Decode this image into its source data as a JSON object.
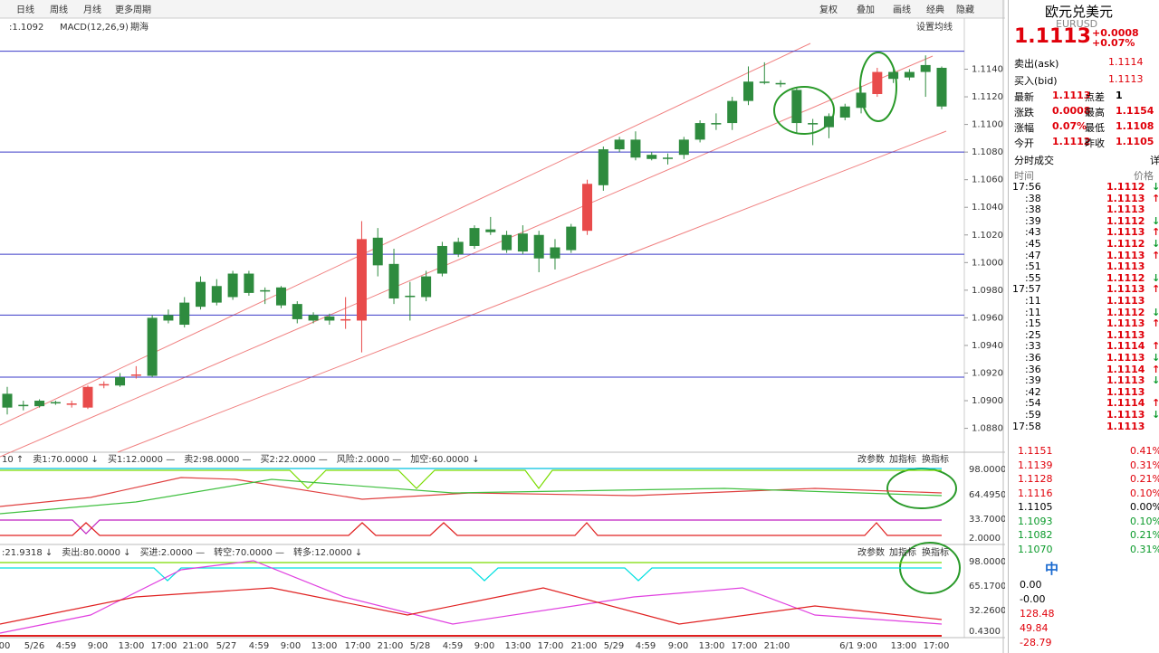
{
  "toolbar": {
    "periods": [
      "日线",
      "周线",
      "月线",
      "更多周期"
    ],
    "tools": [
      "复权",
      "叠加",
      "画线",
      "经典",
      "隐藏"
    ]
  },
  "main_legend": {
    "value": ":1.1092",
    "indicator": "MACD(12,26,9)",
    "source": "期海",
    "ma_button": "设置均线"
  },
  "chart_data": {
    "type": "candlestick",
    "up_color": "#e84b4b",
    "down_color": "#2e8b3e",
    "level_color": "#3a3ac8",
    "ylim": [
      1.0864,
      1.1177
    ],
    "yticks": [
      {
        "value": 1.088,
        "label": "1.0880"
      },
      {
        "value": 1.09,
        "label": "1.0900"
      },
      {
        "value": 1.092,
        "label": "1.0920"
      },
      {
        "value": 1.094,
        "label": "1.0940"
      },
      {
        "value": 1.096,
        "label": "1.0960"
      },
      {
        "value": 1.098,
        "label": "1.0980"
      },
      {
        "value": 1.1,
        "label": "1.1000"
      },
      {
        "value": 1.102,
        "label": "1.1020"
      },
      {
        "value": 1.104,
        "label": "1.1040"
      },
      {
        "value": 1.106,
        "label": "1.1060"
      },
      {
        "value": 1.108,
        "label": "1.1080"
      },
      {
        "value": 1.11,
        "label": "1.1100"
      },
      {
        "value": 1.112,
        "label": "1.1120"
      },
      {
        "value": 1.114,
        "label": "1.1140"
      }
    ],
    "levels": [
      1.1153,
      1.108,
      1.1006,
      1.0962,
      1.0917
    ],
    "x_labels": [
      "00",
      "5/26",
      "4:59",
      "9:00",
      "13:00",
      "17:00",
      "21:00",
      "5/27",
      "4:59",
      "9:00",
      "13:00",
      "17:00",
      "21:00",
      "5/28",
      "4:59",
      "9:00",
      "13:00",
      "17:00",
      "21:00",
      "5/29",
      "4:59",
      "9:00",
      "13:00",
      "17:00",
      "21:00",
      "6/1 9:00",
      "13:00",
      "17:00"
    ],
    "candles": [
      [
        1.0905,
        1.091,
        1.089,
        1.0895
      ],
      [
        1.0897,
        1.09,
        1.0893,
        1.0896
      ],
      [
        1.09,
        1.0901,
        1.0895,
        1.0896
      ],
      [
        1.0899,
        1.09,
        1.0897,
        1.0898
      ],
      [
        1.0897,
        1.09,
        1.0895,
        1.0898
      ],
      [
        1.0895,
        1.0911,
        1.0894,
        1.091
      ],
      [
        1.0911,
        1.0914,
        1.0909,
        1.0912
      ],
      [
        1.0917,
        1.092,
        1.091,
        1.0911
      ],
      [
        1.0918,
        1.0925,
        1.0916,
        1.0919
      ],
      [
        1.096,
        1.0962,
        1.0917,
        1.0918
      ],
      [
        1.0962,
        1.0966,
        1.0956,
        1.0958
      ],
      [
        1.0971,
        1.0975,
        1.0953,
        1.0955
      ],
      [
        1.0986,
        1.099,
        1.0966,
        1.0968
      ],
      [
        1.0983,
        1.0988,
        1.0969,
        1.0971
      ],
      [
        1.0992,
        1.0994,
        1.0973,
        1.0975
      ],
      [
        1.0992,
        1.0994,
        1.0976,
        1.0978
      ],
      [
        1.098,
        1.0982,
        1.097,
        1.0979
      ],
      [
        1.0982,
        1.0983,
        1.0967,
        1.0969
      ],
      [
        1.097,
        1.0972,
        1.0956,
        1.0959
      ],
      [
        1.0962,
        1.0964,
        1.0956,
        1.0958
      ],
      [
        1.0961,
        1.0963,
        1.0955,
        1.0958
      ],
      [
        1.0958,
        1.0975,
        1.0952,
        1.0959
      ],
      [
        1.0958,
        1.103,
        1.0935,
        1.1017
      ],
      [
        1.1018,
        1.1025,
        1.099,
        1.0998
      ],
      [
        1.0999,
        1.101,
        1.097,
        1.0974
      ],
      [
        1.0976,
        1.0986,
        1.0958,
        1.0975
      ],
      [
        1.099,
        1.0994,
        1.0972,
        1.0975
      ],
      [
        1.1012,
        1.1015,
        1.099,
        1.0992
      ],
      [
        1.1015,
        1.1018,
        1.1004,
        1.1006
      ],
      [
        1.1025,
        1.1027,
        1.101,
        1.1012
      ],
      [
        1.1024,
        1.1033,
        1.102,
        1.1022
      ],
      [
        1.102,
        1.1023,
        1.1007,
        1.1009
      ],
      [
        1.1021,
        1.1027,
        1.1006,
        1.1008
      ],
      [
        1.102,
        1.1023,
        1.0993,
        1.1003
      ],
      [
        1.1011,
        1.1017,
        1.0995,
        1.1003
      ],
      [
        1.1026,
        1.1028,
        1.1007,
        1.1009
      ],
      [
        1.1023,
        1.106,
        1.102,
        1.1057
      ],
      [
        1.1082,
        1.1084,
        1.1052,
        1.1056
      ],
      [
        1.1089,
        1.1091,
        1.108,
        1.1082
      ],
      [
        1.1089,
        1.1095,
        1.1074,
        1.1076
      ],
      [
        1.1078,
        1.108,
        1.1074,
        1.1075
      ],
      [
        1.1076,
        1.1079,
        1.1071,
        1.1075
      ],
      [
        1.1089,
        1.1091,
        1.1075,
        1.1078
      ],
      [
        1.1101,
        1.1103,
        1.1087,
        1.1089
      ],
      [
        1.1101,
        1.1108,
        1.1096,
        1.11
      ],
      [
        1.1117,
        1.112,
        1.1096,
        1.1101
      ],
      [
        1.1131,
        1.1142,
        1.1114,
        1.1117
      ],
      [
        1.1131,
        1.1145,
        1.1129,
        1.113
      ],
      [
        1.113,
        1.1132,
        1.1127,
        1.1129
      ],
      [
        1.1125,
        1.1127,
        1.1094,
        1.1101
      ],
      [
        1.1101,
        1.1104,
        1.1085,
        1.11
      ],
      [
        1.1106,
        1.1108,
        1.109,
        1.1098
      ],
      [
        1.1113,
        1.1115,
        1.1103,
        1.1105
      ],
      [
        1.1123,
        1.1128,
        1.1108,
        1.1112
      ],
      [
        1.1122,
        1.1141,
        1.112,
        1.1138
      ],
      [
        1.1138,
        1.114,
        1.113,
        1.1133
      ],
      [
        1.1138,
        1.114,
        1.1132,
        1.1134
      ],
      [
        1.1143,
        1.115,
        1.112,
        1.1138
      ],
      [
        1.1141,
        1.1142,
        1.1111,
        1.1113
      ]
    ]
  },
  "panel1": {
    "header": [
      {
        "text": "10 ↑",
        "color": "#e0208c"
      },
      {
        "text": "卖1:70.0000 ↓",
        "color": "#7acc00"
      },
      {
        "text": "买1:12.0000 —",
        "color": "#e00000"
      },
      {
        "text": "卖2:98.0000 —",
        "color": "#00b0d0"
      },
      {
        "text": "买2:22.0000 —",
        "color": "#e000e0"
      },
      {
        "text": "风险:2.0000 —",
        "color": "#80e0ff"
      },
      {
        "text": "加空:60.0000 ↓",
        "color": "#80e0ff"
      }
    ],
    "buttons": [
      "改参数",
      "加指标",
      "换指标"
    ],
    "axis": [
      "98.0000",
      "64.4950",
      "33.7000",
      "2.0000"
    ]
  },
  "panel2": {
    "header": [
      {
        "text": ":21.9318 ↓",
        "color": "#e0208c"
      },
      {
        "text": "卖出:80.0000 ↓",
        "color": "#7acc00"
      },
      {
        "text": "买进:2.0000 —",
        "color": "#e00000"
      },
      {
        "text": "转空:70.0000 —",
        "color": "#00b0d0"
      },
      {
        "text": "转多:12.0000 ↓",
        "color": "#80e0ff"
      }
    ],
    "buttons": [
      "改参数",
      "加指标",
      "换指标"
    ],
    "axis": [
      "98.0000",
      "65.1700",
      "32.2600",
      "0.4300"
    ]
  },
  "quote": {
    "name": "欧元兑美元",
    "code": "EURUSD",
    "price": "1.1113",
    "change": "+0.0008",
    "change_pct": "+0.07%",
    "ask_label": "卖出(ask)",
    "ask": "1.1114",
    "bid_label": "买入(bid)",
    "bid": "1.1113",
    "stats": [
      [
        "最新",
        "1.1113",
        "点差",
        "1"
      ],
      [
        "涨跌",
        "0.0008",
        "最高",
        "1.1154"
      ],
      [
        "涨幅",
        "0.07%",
        "最低",
        "1.1108"
      ],
      [
        "今开",
        "1.1112",
        "昨收",
        "1.1105"
      ]
    ],
    "trades_title": "分时成交",
    "detail": "详",
    "time_header": "时间",
    "price_header": "价格",
    "trades": [
      {
        "time": "17:56",
        "price": "1.1112",
        "dir": "↓"
      },
      {
        "time": ":38",
        "price": "1.1113",
        "dir": "↑"
      },
      {
        "time": ":38",
        "price": "1.1113"
      },
      {
        "time": ":39",
        "price": "1.1112",
        "dir": "↓"
      },
      {
        "time": ":43",
        "price": "1.1113",
        "dir": "↑"
      },
      {
        "time": ":45",
        "price": "1.1112",
        "dir": "↓"
      },
      {
        "time": ":47",
        "price": "1.1113",
        "dir": "↑"
      },
      {
        "time": ":51",
        "price": "1.1113"
      },
      {
        "time": ":55",
        "price": "1.1112",
        "dir": "↓"
      },
      {
        "time": "17:57",
        "price": "1.1113",
        "dir": "↑"
      },
      {
        "time": ":11",
        "price": "1.1113"
      },
      {
        "time": ":11",
        "price": "1.1112",
        "dir": "↓"
      },
      {
        "time": ":15",
        "price": "1.1113",
        "dir": "↑"
      },
      {
        "time": ":25",
        "price": "1.1113"
      },
      {
        "time": ":33",
        "price": "1.1114",
        "dir": "↑"
      },
      {
        "time": ":36",
        "price": "1.1113",
        "dir": "↓"
      },
      {
        "time": ":36",
        "price": "1.1114",
        "dir": "↑"
      },
      {
        "time": ":39",
        "price": "1.1113",
        "dir": "↓"
      },
      {
        "time": ":42",
        "price": "1.1113"
      },
      {
        "time": ":54",
        "price": "1.1114",
        "dir": "↑"
      },
      {
        "time": ":59",
        "price": "1.1113",
        "dir": "↓"
      },
      {
        "time": "17:58",
        "price": "1.1113"
      }
    ],
    "mini_left": [
      "1.1151",
      "1.1139",
      "1.1128",
      "1.1116",
      "1.1105",
      "1.1093",
      "1.1082",
      "1.1070"
    ],
    "mini_right": [
      "0.41%",
      "0.31%",
      "0.21%",
      "0.10%",
      "0.00%",
      "0.10%",
      "0.21%",
      "0.31%"
    ],
    "lang": "中",
    "bottom_labels": [
      "0.00",
      "-0.00",
      "128.48",
      "49.84",
      "-28.79"
    ]
  }
}
